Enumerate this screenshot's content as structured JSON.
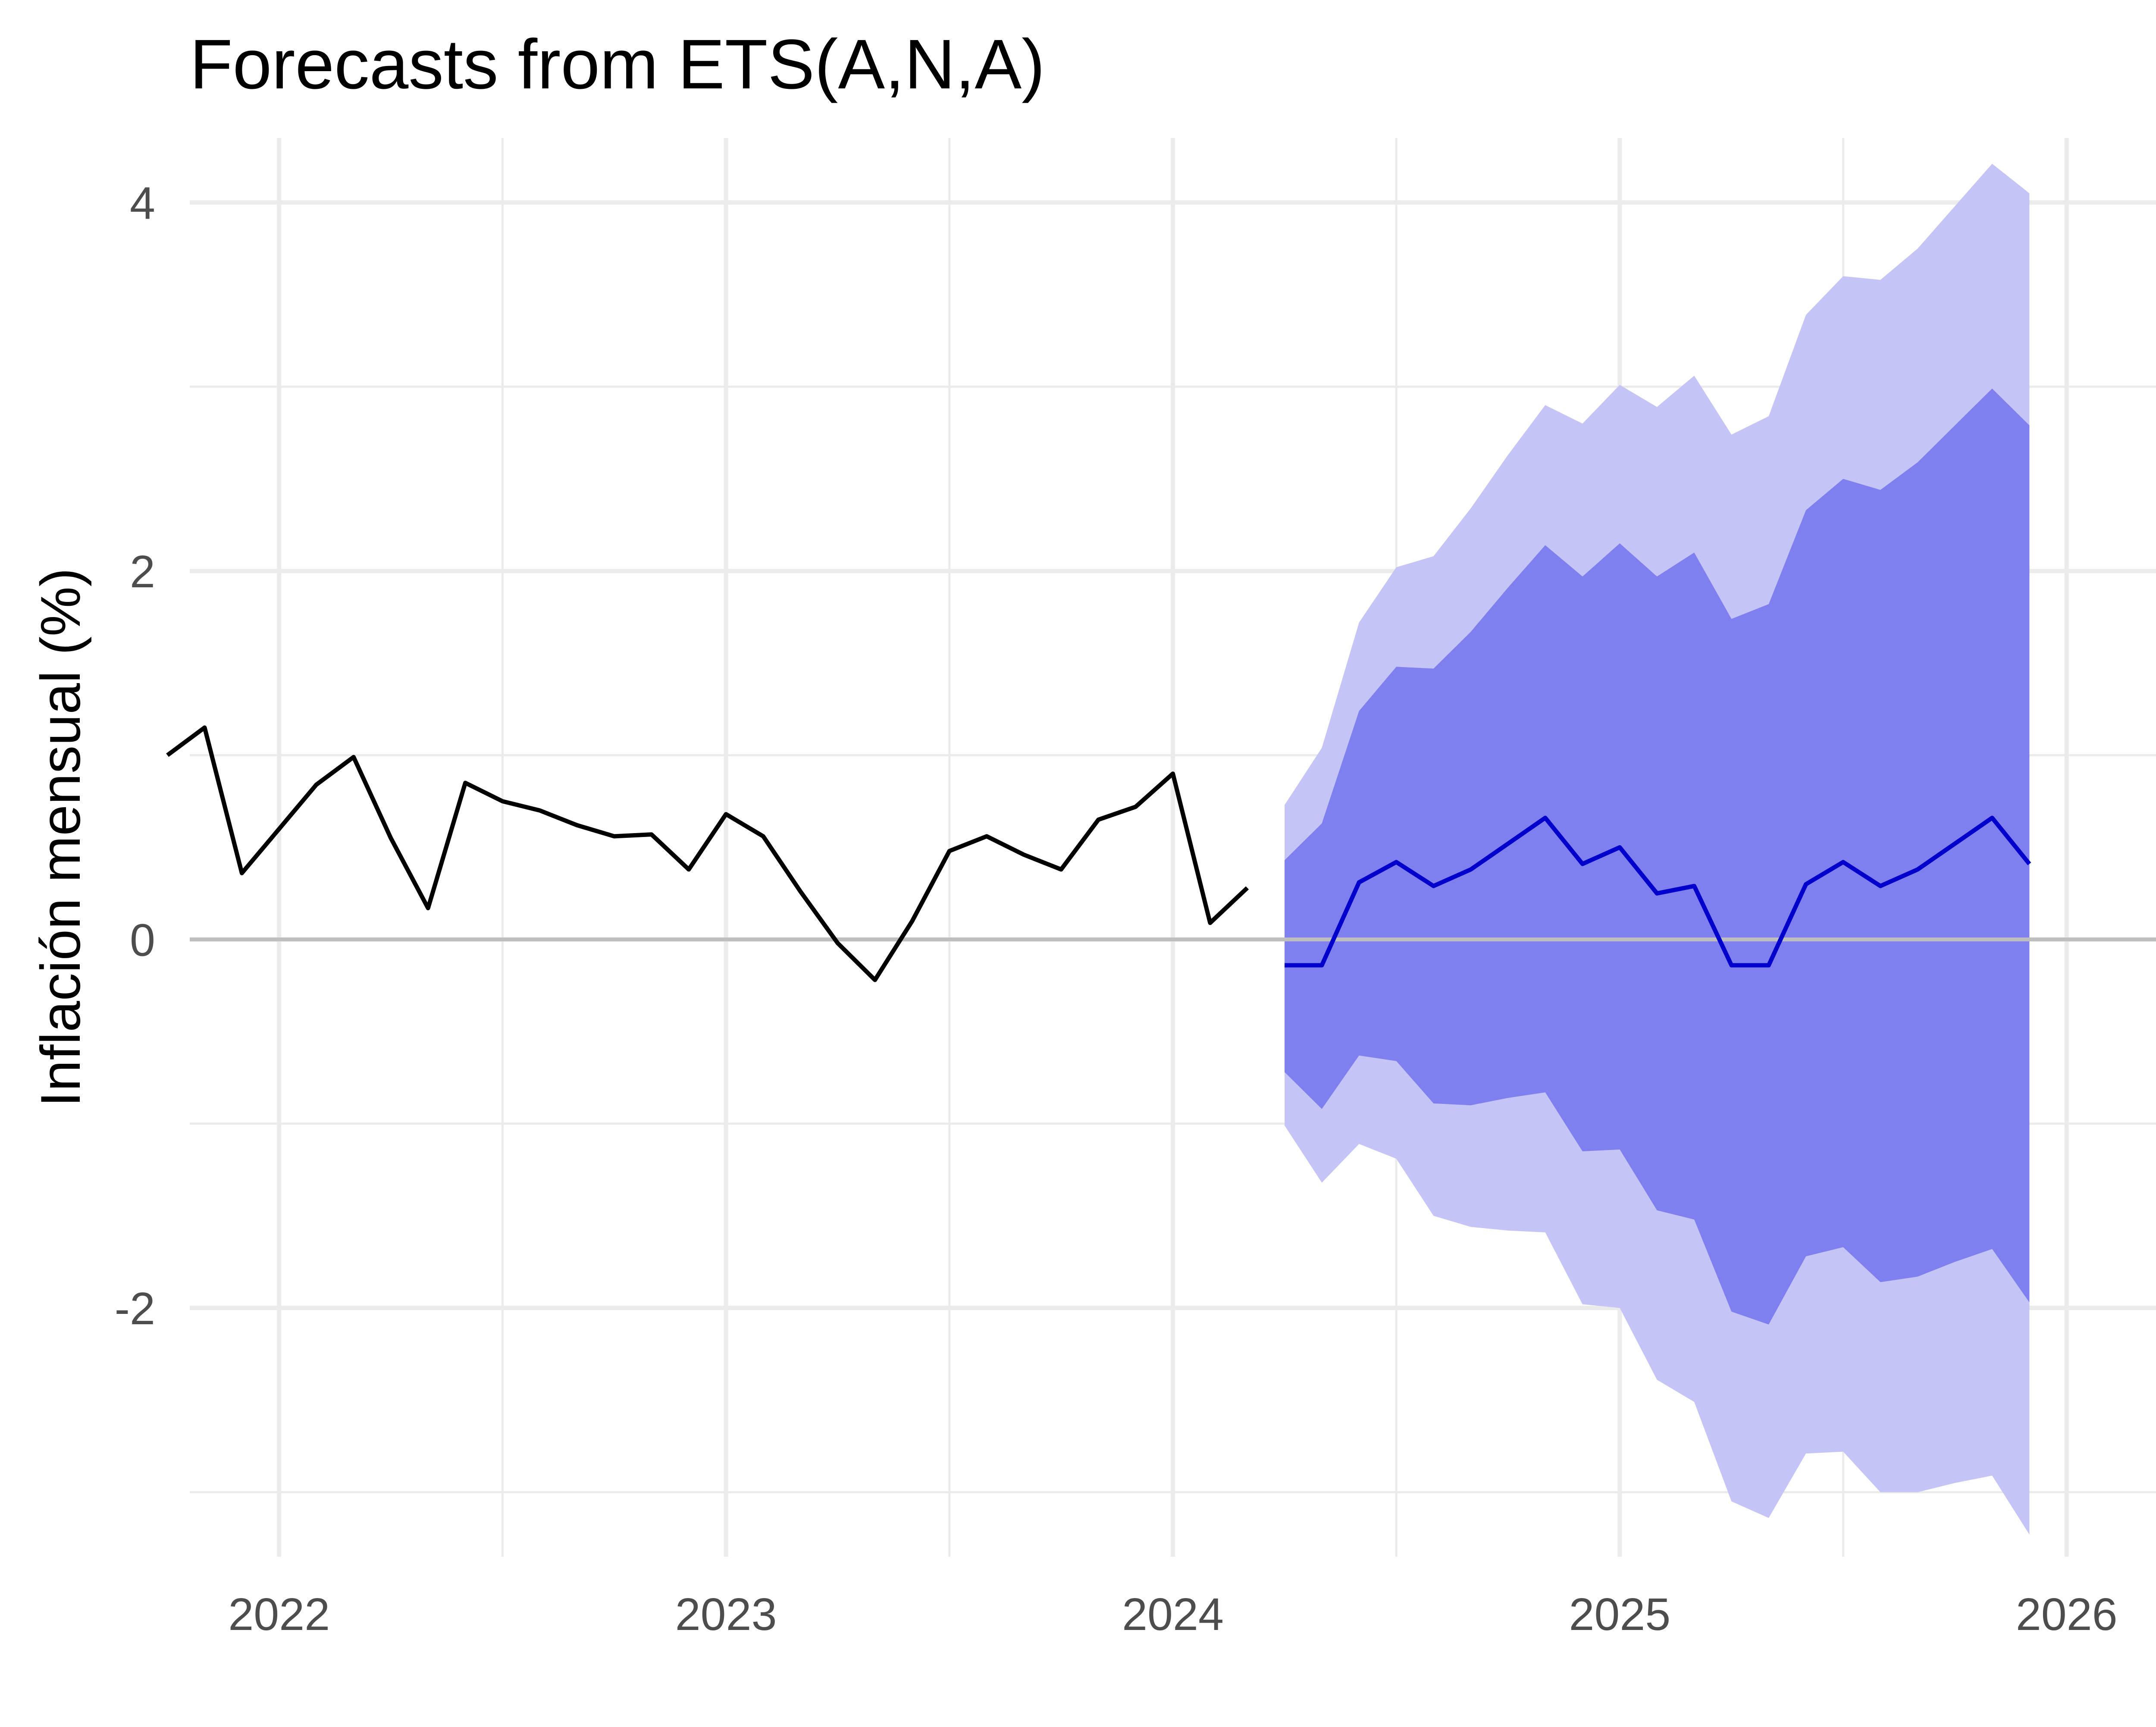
{
  "chart_data": {
    "type": "line",
    "title": "Forecasts from ETS(A,N,A)",
    "xlabel": "",
    "ylabel": "Inflación mensual (%)",
    "xlim": [
      2021.8,
      2026.2
    ],
    "ylim": [
      -3.35,
      4.35
    ],
    "x_ticks": [
      2022,
      2023,
      2024,
      2025,
      2026
    ],
    "x_tick_labels": [
      "2022",
      "2023",
      "2024",
      "2025",
      "2026"
    ],
    "y_ticks": [
      -2,
      0,
      2,
      4
    ],
    "y_tick_labels": [
      "-2",
      "0",
      "2",
      "4"
    ],
    "grid": true,
    "legend": "none",
    "colors": {
      "history": "#000000",
      "forecast": "#0000cc",
      "band80": "#7f7fef",
      "band95": "#c4c4f6",
      "zero_line": "#bebebe",
      "grid": "#ebebeb"
    },
    "series": [
      {
        "role": "history",
        "x": [
          "2021-10",
          "2021-11",
          "2021-12",
          "2022-01",
          "2022-02",
          "2022-03",
          "2022-04",
          "2022-05",
          "2022-06",
          "2022-07",
          "2022-08",
          "2022-09",
          "2022-10",
          "2022-11",
          "2022-12",
          "2023-01",
          "2023-02",
          "2023-03",
          "2023-04",
          "2023-05",
          "2023-06",
          "2023-07",
          "2023-08",
          "2023-09",
          "2023-10",
          "2023-11",
          "2023-12",
          "2024-01",
          "2024-02",
          "2024-03"
        ],
        "values": [
          1.0,
          1.15,
          0.36,
          0.6,
          0.84,
          0.99,
          0.55,
          0.17,
          0.85,
          0.75,
          0.7,
          0.62,
          0.56,
          0.57,
          0.38,
          0.68,
          0.56,
          0.26,
          -0.02,
          -0.22,
          0.1,
          0.48,
          0.56,
          0.46,
          0.38,
          0.65,
          0.72,
          0.9,
          0.09,
          0.28
        ]
      },
      {
        "role": "forecast",
        "x": [
          "2024-04",
          "2024-05",
          "2024-06",
          "2024-07",
          "2024-08",
          "2024-09",
          "2024-10",
          "2024-11",
          "2024-12",
          "2025-01",
          "2025-02",
          "2025-03",
          "2025-04",
          "2025-05",
          "2025-06",
          "2025-07",
          "2025-08",
          "2025-09",
          "2025-10",
          "2025-11",
          "2025-12"
        ],
        "values": [
          -0.14,
          -0.14,
          0.31,
          0.42,
          0.29,
          0.38,
          0.52,
          0.66,
          0.41,
          0.5,
          0.25,
          0.29,
          -0.14,
          -0.14,
          0.3,
          0.42,
          0.29,
          0.38,
          0.52,
          0.66,
          0.41
        ],
        "lo80": [
          -0.72,
          -0.92,
          -0.63,
          -0.66,
          -0.89,
          -0.9,
          -0.86,
          -0.83,
          -1.15,
          -1.14,
          -1.47,
          -1.52,
          -2.02,
          -2.09,
          -1.72,
          -1.67,
          -1.86,
          -1.83,
          -1.75,
          -1.68,
          -1.97
        ],
        "hi80": [
          0.43,
          0.63,
          1.24,
          1.48,
          1.47,
          1.67,
          1.91,
          2.14,
          1.97,
          2.15,
          1.97,
          2.1,
          1.74,
          1.82,
          2.33,
          2.5,
          2.44,
          2.59,
          2.79,
          2.99,
          2.79
        ],
        "lo95": [
          -1.01,
          -1.32,
          -1.11,
          -1.19,
          -1.5,
          -1.56,
          -1.58,
          -1.59,
          -1.98,
          -2.0,
          -2.39,
          -2.51,
          -3.05,
          -3.14,
          -2.79,
          -2.78,
          -3.0,
          -3.0,
          -2.95,
          -2.91,
          -3.23
        ],
        "hi95": [
          0.73,
          1.04,
          1.72,
          2.02,
          2.08,
          2.34,
          2.63,
          2.9,
          2.8,
          3.01,
          2.89,
          3.06,
          2.74,
          2.84,
          3.39,
          3.6,
          3.58,
          3.75,
          3.98,
          4.21,
          4.05
        ]
      }
    ]
  }
}
